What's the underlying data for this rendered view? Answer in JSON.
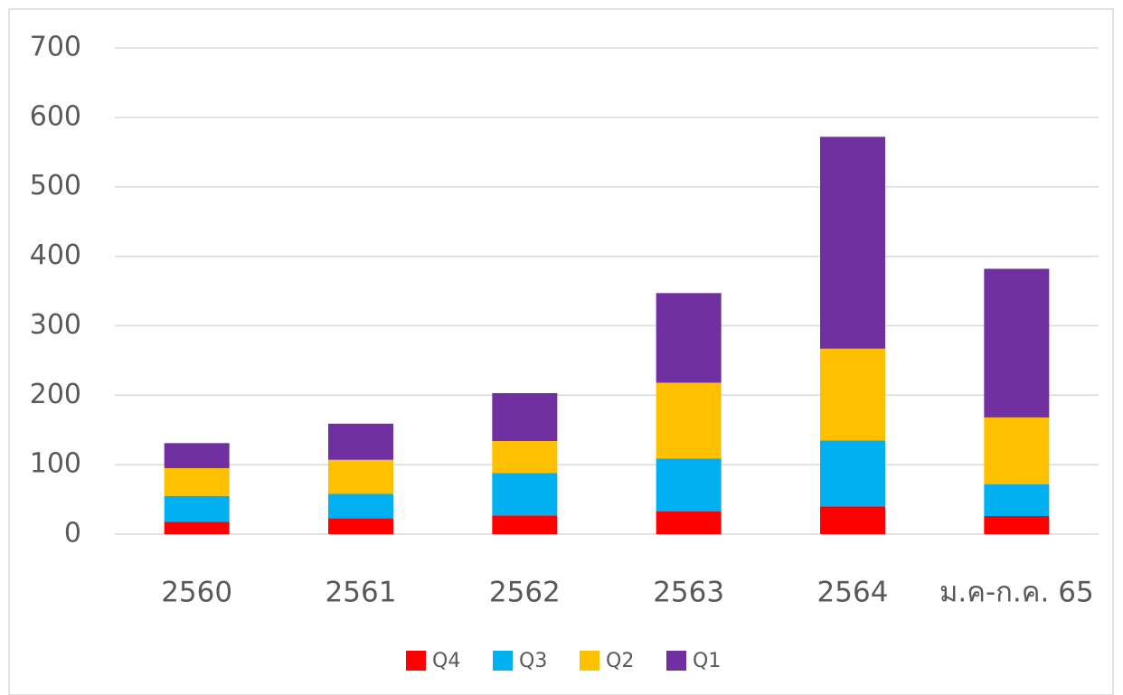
{
  "chart_data": {
    "type": "stacked_bar",
    "categories": [
      "2560",
      "2561",
      "2562",
      "2563",
      "2564",
      "ม.ค-ก.ค. 65"
    ],
    "series": [
      {
        "name": "Q4",
        "color": "#ff0000",
        "values": [
          18,
          23,
          27,
          33,
          40,
          26
        ]
      },
      {
        "name": "Q3",
        "color": "#00b0f0",
        "values": [
          37,
          35,
          61,
          76,
          95,
          46
        ]
      },
      {
        "name": "Q2",
        "color": "#ffc000",
        "values": [
          40,
          49,
          46,
          109,
          132,
          96
        ]
      },
      {
        "name": "Q1",
        "color": "#7030a0",
        "values": [
          36,
          52,
          69,
          129,
          305,
          214
        ]
      }
    ],
    "ylim": [
      0,
      700
    ],
    "yticks": [
      0,
      100,
      200,
      300,
      400,
      500,
      600,
      700
    ],
    "grid": true,
    "legend": "bottom"
  }
}
